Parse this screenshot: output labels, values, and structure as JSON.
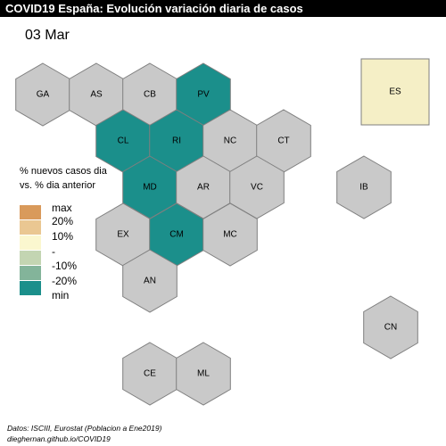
{
  "title": "COVID19 España: Evolución variación diaria de casos",
  "date": "03 Mar",
  "colors": {
    "grey": "#c9c9c9",
    "teal": "#1b8f8b",
    "es_fill": "#f5efc6"
  },
  "regions": [
    {
      "code": "GA",
      "fill": "grey"
    },
    {
      "code": "AS",
      "fill": "grey"
    },
    {
      "code": "CB",
      "fill": "grey"
    },
    {
      "code": "PV",
      "fill": "teal"
    },
    {
      "code": "CL",
      "fill": "teal"
    },
    {
      "code": "RI",
      "fill": "teal"
    },
    {
      "code": "NC",
      "fill": "grey"
    },
    {
      "code": "CT",
      "fill": "grey"
    },
    {
      "code": "MD",
      "fill": "teal"
    },
    {
      "code": "AR",
      "fill": "grey"
    },
    {
      "code": "VC",
      "fill": "grey"
    },
    {
      "code": "EX",
      "fill": "grey"
    },
    {
      "code": "CM",
      "fill": "teal"
    },
    {
      "code": "MC",
      "fill": "grey"
    },
    {
      "code": "AN",
      "fill": "grey"
    },
    {
      "code": "IB",
      "fill": "grey"
    },
    {
      "code": "CN",
      "fill": "grey"
    },
    {
      "code": "CE",
      "fill": "grey"
    },
    {
      "code": "ML",
      "fill": "grey"
    }
  ],
  "spain_box": {
    "code": "ES",
    "fill": "es_fill"
  },
  "legend": {
    "title_line1": "% nuevos casos dia",
    "title_line2": "vs. % dia anterior",
    "items": [
      {
        "label": "max",
        "color": "#d99a5b"
      },
      {
        "label": "20%",
        "color": "#eac792"
      },
      {
        "label": "10%",
        "color": "#fbf7cf"
      },
      {
        "label": "-",
        "color": "#c3d5b2"
      },
      {
        "label": "-10%",
        "color": "#83b49a"
      },
      {
        "label": "-20%",
        "color": "#1b8f8b"
      },
      {
        "label": "min",
        "color": null
      }
    ]
  },
  "source": {
    "line1": "Datos: ISCIII, Eurostat (Poblacion a Ene2019)",
    "line2": "dieghernan.github.io/COVID19"
  }
}
